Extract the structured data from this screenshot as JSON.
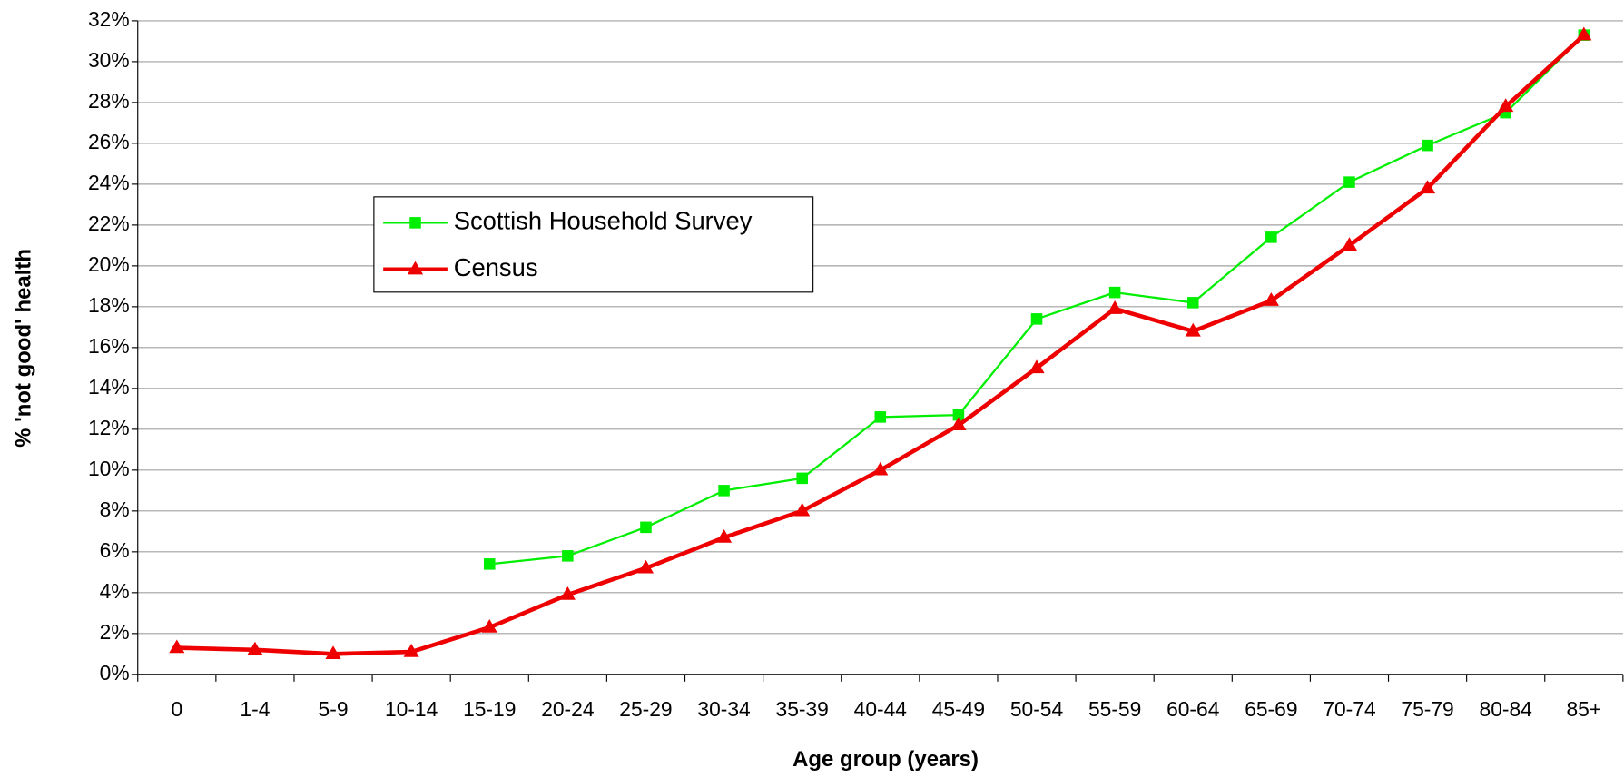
{
  "chart_data": {
    "type": "line",
    "xlabel": "Age group (years)",
    "ylabel": "% 'not good' health",
    "categories": [
      "0",
      "1-4",
      "5-9",
      "10-14",
      "15-19",
      "20-24",
      "25-29",
      "30-34",
      "35-39",
      "40-44",
      "45-49",
      "50-54",
      "55-59",
      "60-64",
      "65-69",
      "70-74",
      "75-79",
      "80-84",
      "85+"
    ],
    "series": [
      {
        "name": "Scottish Household Survey",
        "color": "#00ee00",
        "marker": "square",
        "values": [
          null,
          null,
          null,
          null,
          5.4,
          5.8,
          7.2,
          9.0,
          9.6,
          12.6,
          12.7,
          17.4,
          18.7,
          18.2,
          21.4,
          24.1,
          25.9,
          27.5,
          31.3
        ]
      },
      {
        "name": "Census",
        "color": "#ee0000",
        "marker": "triangle",
        "values": [
          1.3,
          1.2,
          1.0,
          1.1,
          2.3,
          3.9,
          5.2,
          6.7,
          8.0,
          10.0,
          12.2,
          15.0,
          17.9,
          16.8,
          18.3,
          21.0,
          23.8,
          27.8,
          31.3
        ]
      }
    ],
    "ylim": [
      0,
      32
    ],
    "yticks": [
      {
        "value": 0,
        "label": "0%"
      },
      {
        "value": 2,
        "label": "2%"
      },
      {
        "value": 4,
        "label": "4%"
      },
      {
        "value": 6,
        "label": "6%"
      },
      {
        "value": 8,
        "label": "8%"
      },
      {
        "value": 10,
        "label": "10%"
      },
      {
        "value": 12,
        "label": "12%"
      },
      {
        "value": 14,
        "label": "14%"
      },
      {
        "value": 16,
        "label": "16%"
      },
      {
        "value": 18,
        "label": "18%"
      },
      {
        "value": 20,
        "label": "20%"
      },
      {
        "value": 22,
        "label": "22%"
      },
      {
        "value": 24,
        "label": "24%"
      },
      {
        "value": 26,
        "label": "26%"
      },
      {
        "value": 28,
        "label": "28%"
      },
      {
        "value": 30,
        "label": "30%"
      },
      {
        "value": 32,
        "label": "32%"
      }
    ],
    "grid": true
  }
}
